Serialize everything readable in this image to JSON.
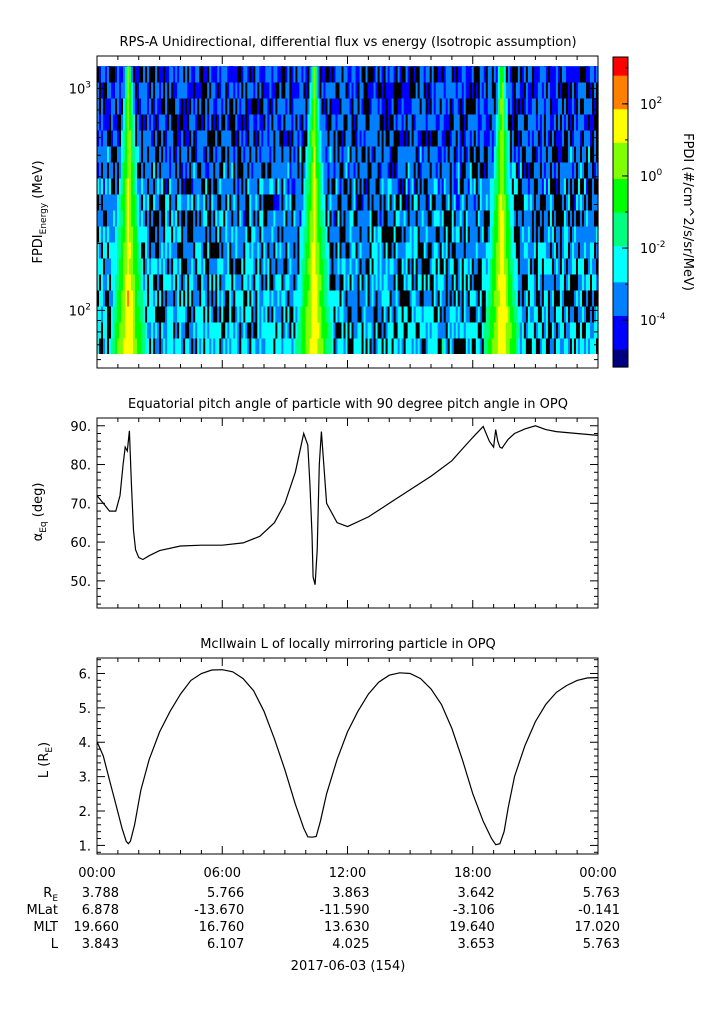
{
  "chart_data": [
    {
      "type": "heatmap",
      "title": "RPS-A Unidirectional, differential flux vs energy (Isotropic assumption)",
      "ylabel": "FPDI",
      "ylabel_sub": "Energy",
      "ylabel_unit": " (MeV)",
      "yscale": "log",
      "ylim": [
        55,
        1400
      ],
      "yticks": [
        {
          "value": 100,
          "base": "10",
          "exp": "2"
        },
        {
          "value": 1000,
          "base": "10",
          "exp": "3"
        }
      ],
      "xlim_hours": [
        0,
        24
      ],
      "features": {
        "bright_ridge_hours": [
          1.5,
          10.4,
          19.4
        ]
      },
      "colorbar": {
        "label": "FPDI (#/cm^2/s/sr/MeV)",
        "scale": "log",
        "range_log10": [
          -5.3,
          3.3
        ],
        "ticks": [
          {
            "base": "10",
            "exp": "2",
            "log": 2
          },
          {
            "base": "10",
            "exp": "0",
            "log": 0
          },
          {
            "base": "10",
            "exp": "-2",
            "log": -2
          },
          {
            "base": "10",
            "exp": "-4",
            "log": -4
          }
        ],
        "colormap": [
          "#000080",
          "#0000ff",
          "#0080ff",
          "#00ffff",
          "#00ff80",
          "#00ff00",
          "#80ff00",
          "#ffff00",
          "#ff8000",
          "#ff0000"
        ]
      }
    },
    {
      "type": "line",
      "title": "Equatorial pitch angle of particle with 90 degree pitch angle in OPQ",
      "ylabel_main": "α",
      "ylabel_sub": "Eq",
      "ylabel_unit": " (deg)",
      "ylim": [
        43,
        92
      ],
      "yticks": [
        "50.",
        "60.",
        "70.",
        "80.",
        "90."
      ],
      "xlim_hours": [
        0,
        24
      ],
      "series": [
        {
          "x": [
            0,
            0.3,
            0.6,
            0.9,
            1.1,
            1.25,
            1.35,
            1.45,
            1.55,
            1.65,
            1.75,
            1.85,
            2.0,
            2.2,
            2.5,
            3.0,
            4.0,
            5.0,
            6.0,
            7.0,
            7.8,
            8.5,
            9.0,
            9.5,
            9.9,
            10.1,
            10.2,
            10.3,
            10.35,
            10.45,
            10.55,
            10.65,
            10.75,
            11.0,
            11.5,
            12.0,
            13.0,
            14.0,
            15.0,
            16.0,
            17.0,
            17.5,
            18.0,
            18.5,
            18.8,
            19.0,
            19.1,
            19.2,
            19.3,
            19.4,
            19.5,
            19.7,
            20.0,
            20.5,
            21.0,
            21.5,
            22.0,
            23.0,
            24.0
          ],
          "y": [
            72,
            70,
            68,
            68,
            72,
            80,
            84.5,
            83.5,
            88.7,
            75,
            63,
            58,
            56,
            55.5,
            56.5,
            57.8,
            59,
            59.2,
            59.2,
            59.8,
            61.5,
            65,
            70,
            78,
            88,
            85,
            75,
            62,
            51,
            49,
            58,
            80,
            88.5,
            70,
            65,
            64,
            66.5,
            70,
            73.5,
            77,
            81,
            84,
            87,
            89.8,
            86,
            84.5,
            89,
            86,
            84.5,
            84.2,
            85,
            86.5,
            88,
            89.2,
            90,
            89,
            88.5,
            88,
            87.5
          ]
        }
      ],
      "xlabel": ""
    },
    {
      "type": "line",
      "title": "McIlwain L of locally mirroring particle in OPQ",
      "ylabel_main": "L (R",
      "ylabel_sub": "E",
      "ylabel_unit": ")",
      "ylim": [
        0.75,
        6.45
      ],
      "yticks": [
        "1.",
        "2.",
        "3.",
        "4.",
        "5.",
        "6."
      ],
      "xlim_hours": [
        0,
        24
      ],
      "series": [
        {
          "x": [
            0,
            0.3,
            0.6,
            0.9,
            1.2,
            1.4,
            1.5,
            1.6,
            1.8,
            2.1,
            2.5,
            3.0,
            3.5,
            4.0,
            4.5,
            5.0,
            5.5,
            6.0,
            6.5,
            7.0,
            7.5,
            8.0,
            8.5,
            9.0,
            9.5,
            9.9,
            10.1,
            10.3,
            10.5,
            10.7,
            11.0,
            11.5,
            12.0,
            12.5,
            13.0,
            13.5,
            14.0,
            14.5,
            15.0,
            15.5,
            16.0,
            16.5,
            17.0,
            17.5,
            18.0,
            18.5,
            18.9,
            19.1,
            19.3,
            19.5,
            19.7,
            20.0,
            20.5,
            21.0,
            21.5,
            22.0,
            22.5,
            23.0,
            23.5,
            24.0
          ],
          "y": [
            4.02,
            3.6,
            2.9,
            2.2,
            1.5,
            1.12,
            1.05,
            1.12,
            1.6,
            2.6,
            3.5,
            4.3,
            4.9,
            5.4,
            5.8,
            6.0,
            6.1,
            6.11,
            6.05,
            5.85,
            5.5,
            4.9,
            4.1,
            3.2,
            2.2,
            1.5,
            1.25,
            1.24,
            1.26,
            1.7,
            2.5,
            3.5,
            4.3,
            4.9,
            5.4,
            5.75,
            5.95,
            6.02,
            6.0,
            5.85,
            5.55,
            5.1,
            4.4,
            3.5,
            2.5,
            1.7,
            1.2,
            1.02,
            1.05,
            1.4,
            2.1,
            3.0,
            3.9,
            4.6,
            5.1,
            5.45,
            5.65,
            5.8,
            5.87,
            5.88
          ]
        }
      ]
    }
  ],
  "xaxis": {
    "tick_labels": [
      "00:00",
      "06:00",
      "12:00",
      "18:00",
      "00:00"
    ],
    "ephemeris": {
      "row_labels": [
        "R",
        "MLat",
        "MLT",
        "L"
      ],
      "r_sub": "E",
      "rows": [
        [
          "3.788",
          "5.766",
          "3.863",
          "3.642",
          "5.763"
        ],
        [
          "6.878",
          "-13.670",
          "-11.590",
          "-3.106",
          "-0.141"
        ],
        [
          "19.660",
          "16.760",
          "13.630",
          "19.640",
          "17.020"
        ],
        [
          "3.843",
          "6.107",
          "4.025",
          "3.653",
          "5.763"
        ]
      ]
    },
    "date_label": "2017-06-03 (154)"
  },
  "colors": {
    "line": "#000000",
    "axis": "#000000",
    "background": "#ffffff"
  }
}
